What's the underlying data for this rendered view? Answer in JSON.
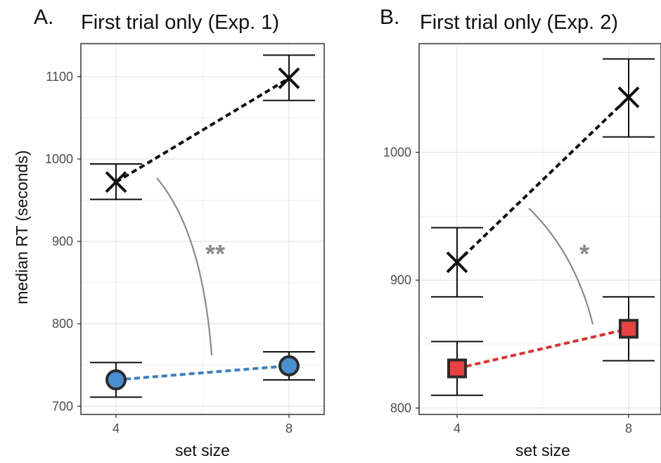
{
  "chart_data": [
    {
      "panel_letter": "A.",
      "type": "line",
      "title": "First trial only (Exp. 1)",
      "xlabel": "set size",
      "ylabel": "median RT (seconds)",
      "x": [
        4,
        8
      ],
      "xticks": [
        "4",
        "8"
      ],
      "ylim": [
        690,
        1140
      ],
      "yticks": [
        700,
        800,
        900,
        1000,
        1100
      ],
      "grid": true,
      "significance": "**",
      "series": [
        {
          "marker": "x",
          "color": "#111111",
          "line_style": "dashed",
          "values": [
            972,
            1098
          ],
          "error_low": [
            951,
            1071
          ],
          "error_high": [
            994,
            1126
          ]
        },
        {
          "marker": "circle",
          "color": "#4a90d0",
          "line_color": "#3d7fc0",
          "line_style": "dashed",
          "values": [
            732,
            749
          ],
          "error_low": [
            711,
            732
          ],
          "error_high": [
            753,
            766
          ]
        }
      ]
    },
    {
      "panel_letter": "B.",
      "type": "line",
      "title": "First trial only (Exp. 2)",
      "xlabel": "set size",
      "ylabel": "",
      "x": [
        4,
        8
      ],
      "xticks": [
        "4",
        "8"
      ],
      "ylim": [
        795,
        1085
      ],
      "yticks": [
        800,
        900,
        1000
      ],
      "grid": true,
      "significance": "*",
      "series": [
        {
          "marker": "x",
          "color": "#111111",
          "line_style": "dashed",
          "values": [
            914,
            1043
          ],
          "error_low": [
            887,
            1012
          ],
          "error_high": [
            941,
            1073
          ]
        },
        {
          "marker": "square",
          "color": "#e8413f",
          "line_color": "#e03030",
          "line_style": "dashed",
          "values": [
            831,
            862
          ],
          "error_low": [
            810,
            837
          ],
          "error_high": [
            852,
            887
          ]
        }
      ]
    }
  ]
}
